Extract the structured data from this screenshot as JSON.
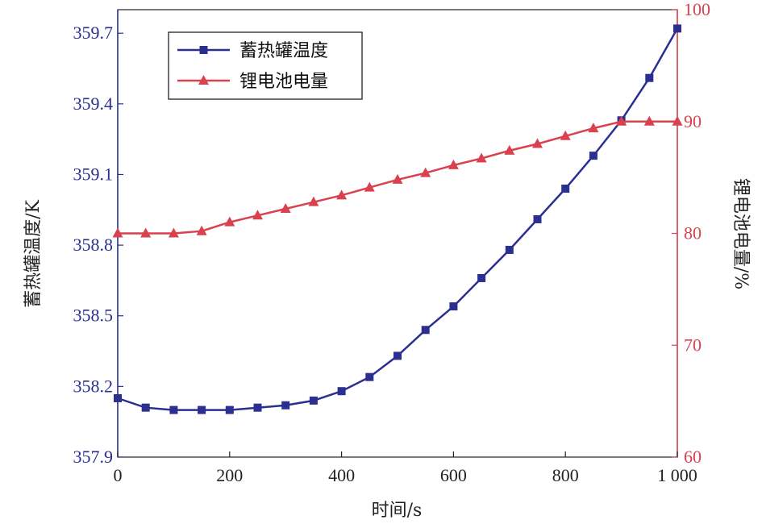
{
  "chart_data": {
    "type": "line",
    "xlabel": "时间/s",
    "ylabel_left": "蓄热罐温度/K",
    "ylabel_right": "锂电池电量/%",
    "xlim": [
      0,
      1000
    ],
    "ylim_left": [
      357.9,
      359.8
    ],
    "ylim_right": [
      60,
      100
    ],
    "x_ticks": [
      "0",
      "200",
      "400",
      "600",
      "800",
      "1 000"
    ],
    "x_tick_values": [
      0,
      200,
      400,
      600,
      800,
      1000
    ],
    "left_ticks": [
      "357.9",
      "358.2",
      "358.5",
      "358.8",
      "359.1",
      "359.4",
      "359.7"
    ],
    "left_tick_values": [
      357.9,
      358.2,
      358.5,
      358.8,
      359.1,
      359.4,
      359.7
    ],
    "right_ticks": [
      "60",
      "70",
      "80",
      "90",
      "100"
    ],
    "right_tick_values": [
      60,
      70,
      80,
      90,
      100
    ],
    "legend_position": "top-left",
    "x": [
      0,
      50,
      100,
      150,
      200,
      250,
      300,
      350,
      400,
      450,
      500,
      550,
      600,
      650,
      700,
      750,
      800,
      850,
      900,
      950,
      1000
    ],
    "series": [
      {
        "name": "蓄热罐温度",
        "axis": "left",
        "marker": "square",
        "color": "#2b2f8f",
        "values": [
          358.15,
          358.11,
          358.1,
          358.1,
          358.1,
          358.11,
          358.12,
          358.14,
          358.18,
          358.24,
          358.33,
          358.44,
          358.54,
          358.66,
          358.78,
          358.91,
          359.04,
          359.18,
          359.33,
          359.51,
          359.72
        ]
      },
      {
        "name": "锂电池电量",
        "axis": "right",
        "marker": "triangle",
        "color": "#d9414f",
        "values": [
          80.0,
          80.0,
          80.0,
          80.2,
          81.0,
          81.6,
          82.2,
          82.8,
          83.4,
          84.1,
          84.8,
          85.4,
          86.1,
          86.7,
          87.4,
          88.0,
          88.7,
          89.4,
          90.0,
          90.0,
          90.0
        ]
      }
    ]
  }
}
